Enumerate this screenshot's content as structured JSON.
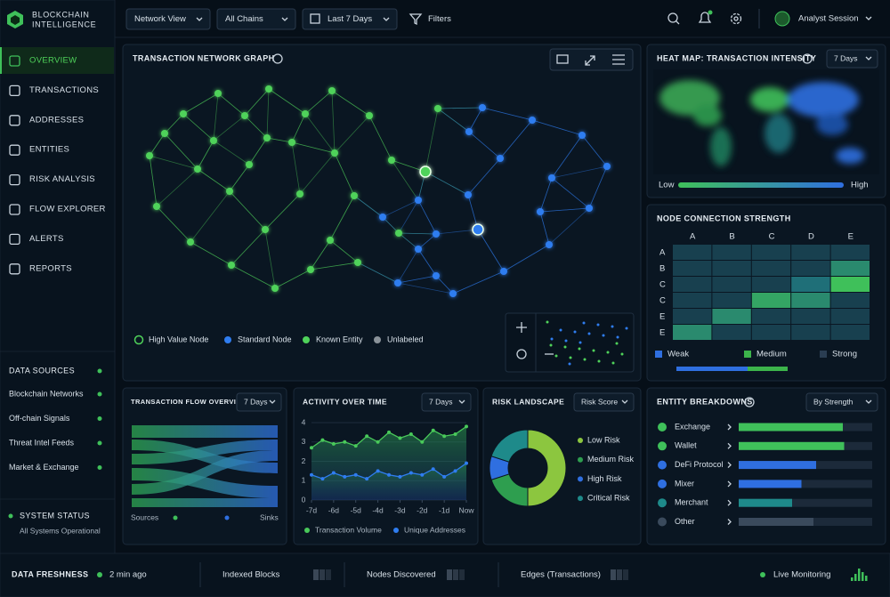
{
  "brand": {
    "line1": "BLOCKCHAIN",
    "line2": "INTELLIGENCE"
  },
  "toolbar": {
    "filters": [
      "Network View",
      "All Chains",
      "Last 7 Days"
    ],
    "filter_button": "Filters",
    "user": "Analyst Session"
  },
  "nav": {
    "items": [
      "OVERVIEW",
      "TRANSACTIONS",
      "ADDRESSES",
      "ENTITIES",
      "RISK ANALYSIS",
      "FLOW EXPLORER",
      "ALERTS",
      "REPORTS"
    ],
    "active": 0
  },
  "data_sources": {
    "title": "DATA SOURCES",
    "items": [
      "Blockchain Networks",
      "Off-chain Signals",
      "Threat Intel Feeds",
      "Market & Exchange"
    ]
  },
  "system_status": {
    "title": "SYSTEM STATUS",
    "message": "All Systems Operational"
  },
  "network_graph": {
    "title": "TRANSACTION NETWORK GRAPH",
    "legend": [
      {
        "name": "High Value Node",
        "color": "#4fd25a"
      },
      {
        "name": "Standard Node",
        "color": "#2f7df0"
      },
      {
        "name": "Known Entity",
        "color": "#4fd25a"
      },
      {
        "name": "Unlabeled",
        "color": "#8a9299"
      }
    ]
  },
  "intensity_map": {
    "title": "HEAT MAP: TRANSACTION INTENSITY",
    "dropdown": "7 Days",
    "low": "Low",
    "high": "High"
  },
  "flow_overview": {
    "title": "TRANSACTION FLOW OVERVIEW",
    "dropdown": "7 Days",
    "source_label": "Sources",
    "sink_label": "Sinks"
  },
  "chart_data": [
    {
      "type": "heatmap",
      "title": "NODE CONNECTION STRENGTH",
      "columns": [
        "A",
        "B",
        "C",
        "D",
        "E"
      ],
      "rows": [
        "A",
        "B",
        "C",
        "C",
        "E",
        "E"
      ],
      "values": [
        [
          0.5,
          0.5,
          0.5,
          0.5,
          0.5
        ],
        [
          0.5,
          0.5,
          0.5,
          0.5,
          2
        ],
        [
          0.5,
          0.5,
          0.5,
          1.5,
          3
        ],
        [
          0.5,
          0.5,
          2.5,
          2,
          0.5
        ],
        [
          0.5,
          2,
          0.5,
          0.5,
          0.5
        ],
        [
          2,
          0.5,
          0.5,
          0.5,
          0.5
        ]
      ],
      "zlim": [
        0,
        3
      ],
      "colors": [
        "#15283a",
        "#1f6f78",
        "#3fc05a"
      ],
      "legend": [
        {
          "name": "Weak",
          "color": "#2f6fe0"
        },
        {
          "name": "Medium",
          "color": "#3cb44b"
        },
        {
          "name": "Strong",
          "color": "#2a3d52"
        }
      ]
    },
    {
      "type": "line",
      "title": "ACTIVITY OVER TIME",
      "dropdown": "7 Days",
      "x": [
        -7,
        -6.5,
        -6,
        -5.5,
        -5,
        -4.5,
        -4,
        -3.5,
        -3,
        -2.5,
        -2,
        -1.5,
        -1,
        -0.5,
        0
      ],
      "xlim": [
        -7,
        0
      ],
      "xticks": [
        {
          "value": -7,
          "label": "-7d"
        },
        {
          "value": -6,
          "label": "-6d"
        },
        {
          "value": -5,
          "label": "-5d"
        },
        {
          "value": -4,
          "label": "-4d"
        },
        {
          "value": -3,
          "label": "-3d"
        },
        {
          "value": -2,
          "label": "-2d"
        },
        {
          "value": -1,
          "label": "-1d"
        },
        {
          "value": 0,
          "label": "Now"
        }
      ],
      "ylim": [
        0,
        4
      ],
      "yticks": [
        0,
        1,
        2,
        3,
        4
      ],
      "series": [
        {
          "name": "Transaction Volume",
          "color": "#49c95a",
          "values": [
            2.7,
            3.1,
            2.9,
            3.0,
            2.8,
            3.3,
            3.0,
            3.5,
            3.2,
            3.4,
            3.0,
            3.6,
            3.3,
            3.4,
            3.8
          ]
        },
        {
          "name": "Unique Addresses",
          "color": "#2f7df0",
          "values": [
            1.3,
            1.1,
            1.4,
            1.2,
            1.3,
            1.1,
            1.5,
            1.3,
            1.2,
            1.4,
            1.3,
            1.6,
            1.2,
            1.5,
            1.9
          ]
        }
      ]
    },
    {
      "type": "pie",
      "title": "RISK LANDSCAPE",
      "dropdown": "Risk Score",
      "categories": [
        "Low Risk",
        "Medium Risk",
        "High Risk",
        "Critical Risk"
      ],
      "values": [
        50,
        20,
        10,
        20
      ],
      "colors": [
        "#8cc63f",
        "#2e9e4f",
        "#2f6fe0",
        "#1e8a8a"
      ]
    },
    {
      "type": "bar",
      "title": "ENTITY BREAKDOWNS",
      "dropdown": "By Strength",
      "categories": [
        "Exchange",
        "Wallet",
        "DeFi Protocol",
        "Mixer",
        "Merchant",
        "Other"
      ],
      "values": [
        78,
        79,
        58,
        47,
        40,
        56
      ],
      "xlim": [
        0,
        100
      ],
      "colors": [
        "#3fc05a",
        "#3fc05a",
        "#2f6fe0",
        "#2f6fe0",
        "#1e8a8a",
        "#3a4a5c"
      ]
    }
  ],
  "footer": {
    "freshness_label": "DATA FRESHNESS",
    "freshness_value": "2 min ago",
    "metrics": [
      "Indexed Blocks",
      "Nodes Discovered",
      "Edges (Transactions)"
    ],
    "live": "Live Monitoring"
  }
}
